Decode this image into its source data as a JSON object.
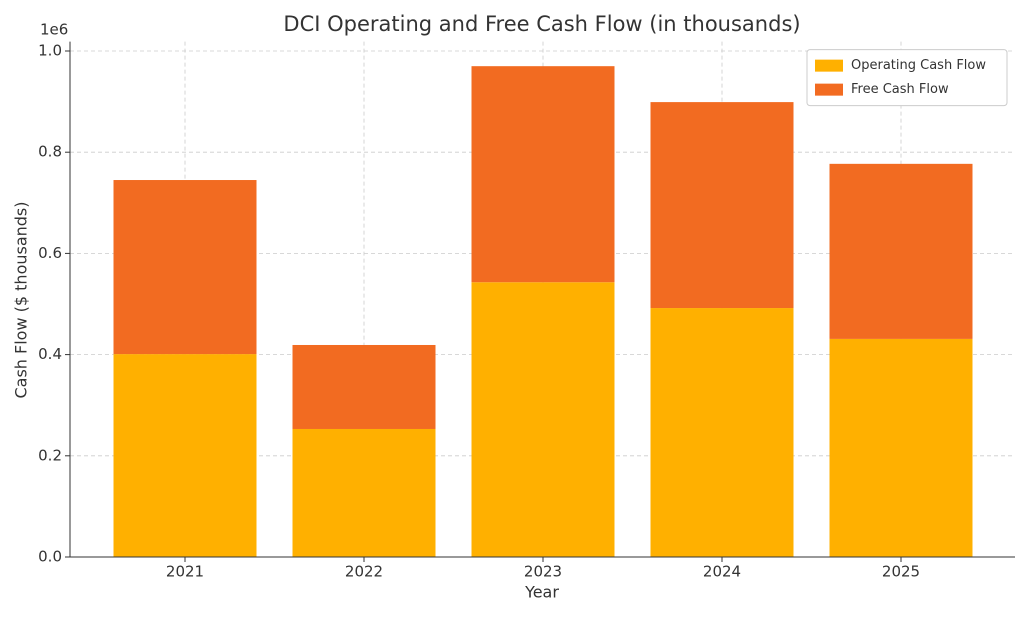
{
  "chart_data": {
    "type": "stacked_bar",
    "title": "DCI Operating and Free Cash Flow (in thousands)",
    "x_label": "Year",
    "y_label": "Cash Flow ($ thousands)",
    "y_offset_label": "1e6",
    "categories": [
      "2021",
      "2022",
      "2023",
      "2024",
      "2025"
    ],
    "series": [
      {
        "name": "Operating Cash Flow",
        "color": "#ffb000",
        "values": [
          401000,
          253000,
          543000,
          492000,
          431000
        ]
      },
      {
        "name": "Free Cash Flow",
        "color": "#f26b21",
        "values": [
          344000,
          166000,
          427000,
          407000,
          346000
        ]
      }
    ],
    "ylim": [
      0,
      1018500
    ],
    "yticks": [
      {
        "value": 0,
        "label": "0.0"
      },
      {
        "value": 200000,
        "label": "0.2"
      },
      {
        "value": 400000,
        "label": "0.4"
      },
      {
        "value": 600000,
        "label": "0.6"
      },
      {
        "value": 800000,
        "label": "0.8"
      },
      {
        "value": 1000000,
        "label": "1.0"
      }
    ],
    "grid": true,
    "legend": "upper right"
  }
}
